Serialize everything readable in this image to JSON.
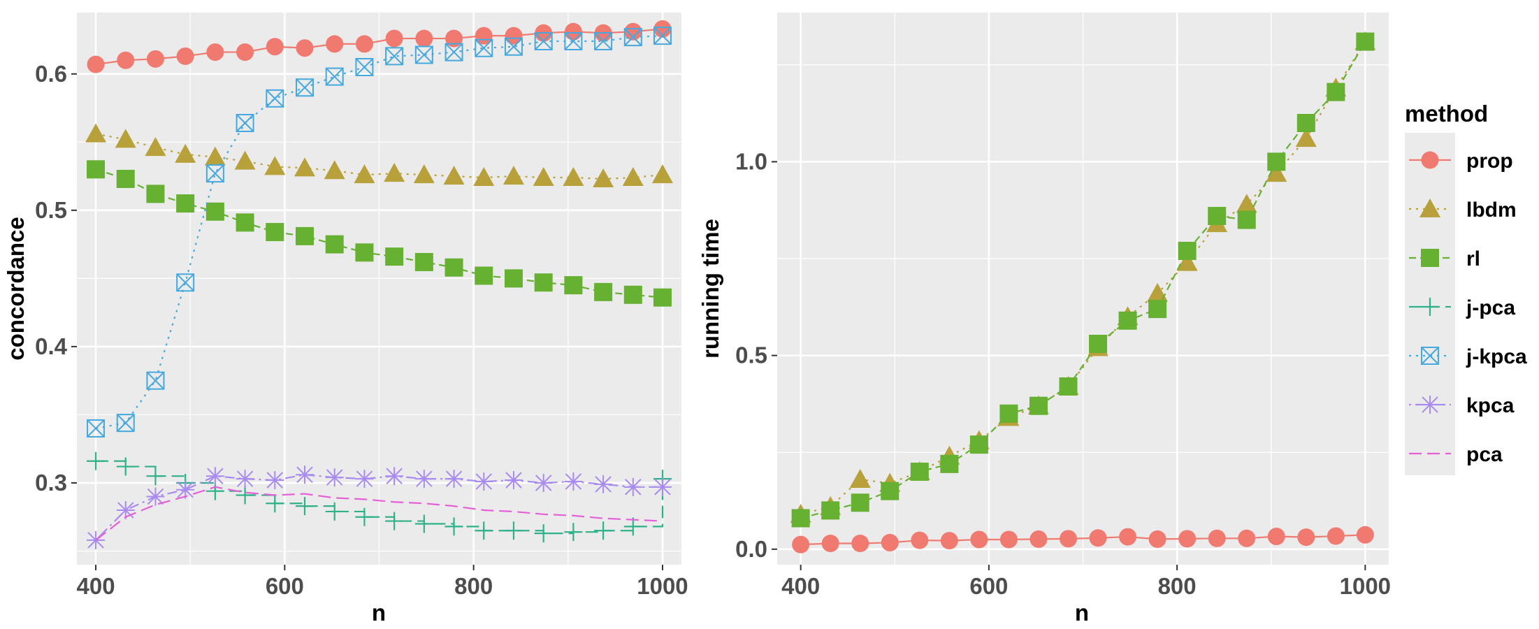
{
  "chart_data": [
    {
      "type": "line",
      "xlabel": "n",
      "ylabel": "concordance",
      "xlim": [
        380,
        1020
      ],
      "ylim": [
        0.24,
        0.645
      ],
      "xticks": [
        400,
        600,
        800,
        1000
      ],
      "yticks": [
        0.3,
        0.4,
        0.5,
        0.6
      ],
      "ytick_labels": [
        "0.3",
        "0.4",
        "0.5",
        "0.6"
      ],
      "grid": true,
      "x": [
        400,
        431.6,
        463.2,
        494.8,
        526.4,
        558,
        589.6,
        621.2,
        652.8,
        684.4,
        716,
        747.6,
        779.2,
        810.8,
        842.4,
        874,
        905.6,
        937.2,
        968.8,
        1000
      ],
      "series": [
        {
          "name": "prop",
          "values": [
            0.607,
            0.61,
            0.611,
            0.613,
            0.616,
            0.616,
            0.62,
            0.619,
            0.622,
            0.622,
            0.626,
            0.626,
            0.626,
            0.628,
            0.628,
            0.63,
            0.631,
            0.63,
            0.631,
            0.633
          ]
        },
        {
          "name": "lbdm",
          "values": [
            0.556,
            0.552,
            0.546,
            0.541,
            0.539,
            0.536,
            0.532,
            0.531,
            0.529,
            0.526,
            0.527,
            0.526,
            0.525,
            0.524,
            0.525,
            0.524,
            0.524,
            0.523,
            0.524,
            0.526
          ]
        },
        {
          "name": "rl",
          "values": [
            0.53,
            0.523,
            0.512,
            0.505,
            0.499,
            0.491,
            0.484,
            0.481,
            0.475,
            0.469,
            0.466,
            0.462,
            0.458,
            0.452,
            0.45,
            0.447,
            0.445,
            0.44,
            0.438,
            0.436
          ]
        },
        {
          "name": "j-pca",
          "values": [
            0.316,
            0.312,
            0.305,
            0.3,
            0.294,
            0.291,
            0.285,
            0.283,
            0.279,
            0.275,
            0.272,
            0.27,
            0.268,
            0.265,
            0.265,
            0.263,
            0.264,
            0.265,
            0.268,
            0.303
          ]
        },
        {
          "name": "j-kpca",
          "values": [
            0.34,
            0.344,
            0.375,
            0.447,
            0.527,
            0.564,
            0.582,
            0.59,
            0.598,
            0.605,
            0.613,
            0.614,
            0.616,
            0.619,
            0.62,
            0.624,
            0.624,
            0.624,
            0.627,
            0.628
          ]
        },
        {
          "name": "kpca",
          "values": [
            0.258,
            0.28,
            0.29,
            0.295,
            0.305,
            0.303,
            0.302,
            0.306,
            0.304,
            0.303,
            0.305,
            0.303,
            0.303,
            0.301,
            0.302,
            0.3,
            0.301,
            0.299,
            0.297,
            0.297
          ]
        },
        {
          "name": "pca",
          "values": [
            0.258,
            0.275,
            0.284,
            0.29,
            0.297,
            0.293,
            0.291,
            0.292,
            0.289,
            0.288,
            0.286,
            0.285,
            0.283,
            0.28,
            0.279,
            0.277,
            0.276,
            0.274,
            0.273,
            0.272
          ]
        }
      ]
    },
    {
      "type": "line",
      "xlabel": "n",
      "ylabel": "running time",
      "xlim": [
        375,
        1025
      ],
      "ylim": [
        -0.04,
        1.385
      ],
      "xticks": [
        400,
        600,
        800,
        1000
      ],
      "yticks": [
        0.0,
        0.5,
        1.0
      ],
      "ytick_labels": [
        "0.0",
        "0.5",
        "1.0"
      ],
      "grid": true,
      "x": [
        400,
        431.6,
        463.2,
        494.8,
        526.4,
        558,
        589.6,
        621.2,
        652.8,
        684.4,
        716,
        747.6,
        779.2,
        810.8,
        842.4,
        874,
        905.6,
        937.2,
        968.8,
        1000
      ],
      "series": [
        {
          "name": "prop",
          "values": [
            0.012,
            0.015,
            0.015,
            0.017,
            0.023,
            0.022,
            0.025,
            0.025,
            0.026,
            0.027,
            0.029,
            0.032,
            0.026,
            0.027,
            0.028,
            0.028,
            0.033,
            0.031,
            0.034,
            0.037
          ]
        },
        {
          "name": "lbdm",
          "values": [
            0.09,
            0.11,
            0.18,
            0.17,
            0.2,
            0.24,
            0.28,
            0.34,
            0.37,
            0.42,
            0.52,
            0.6,
            0.66,
            0.74,
            0.84,
            0.89,
            0.97,
            1.06,
            1.19,
            1.31
          ]
        },
        {
          "name": "rl",
          "values": [
            0.08,
            0.1,
            0.12,
            0.15,
            0.2,
            0.22,
            0.27,
            0.35,
            0.37,
            0.42,
            0.53,
            0.59,
            0.62,
            0.77,
            0.86,
            0.85,
            1.0,
            1.1,
            1.18,
            1.31
          ]
        }
      ]
    }
  ],
  "legend": {
    "title": "method",
    "items": [
      {
        "label": "prop",
        "color": "#F8766D",
        "shape": "circle",
        "dash": "solid"
      },
      {
        "label": "lbdm",
        "color": "#B79F00",
        "shape": "triangle",
        "dash": "dotted"
      },
      {
        "label": "rl",
        "color": "#00BA38",
        "shape": "square",
        "dash": "dashed"
      },
      {
        "label": "j-pca",
        "color": "#00BFC4",
        "shape": "plus",
        "dash": "longdash"
      },
      {
        "label": "j-kpca",
        "color": "#619CFF",
        "shape": "boxcross",
        "dash": "dotted"
      },
      {
        "label": "kpca",
        "color": "#C77CFF",
        "shape": "asterisk",
        "dash": "dotdash"
      },
      {
        "label": "pca",
        "color": "#F564E3",
        "shape": "none",
        "dash": "longdash"
      }
    ]
  },
  "colors": {
    "panel": "#EBEBEB",
    "grid": "#FFFFFF",
    "prop": "#F07A70",
    "lbdm": "#B8A03A",
    "rl": "#66B032",
    "j-pca": "#2FB28A",
    "j-kpca": "#45A9E0",
    "kpca": "#A98BF0",
    "pca": "#E560D8"
  }
}
